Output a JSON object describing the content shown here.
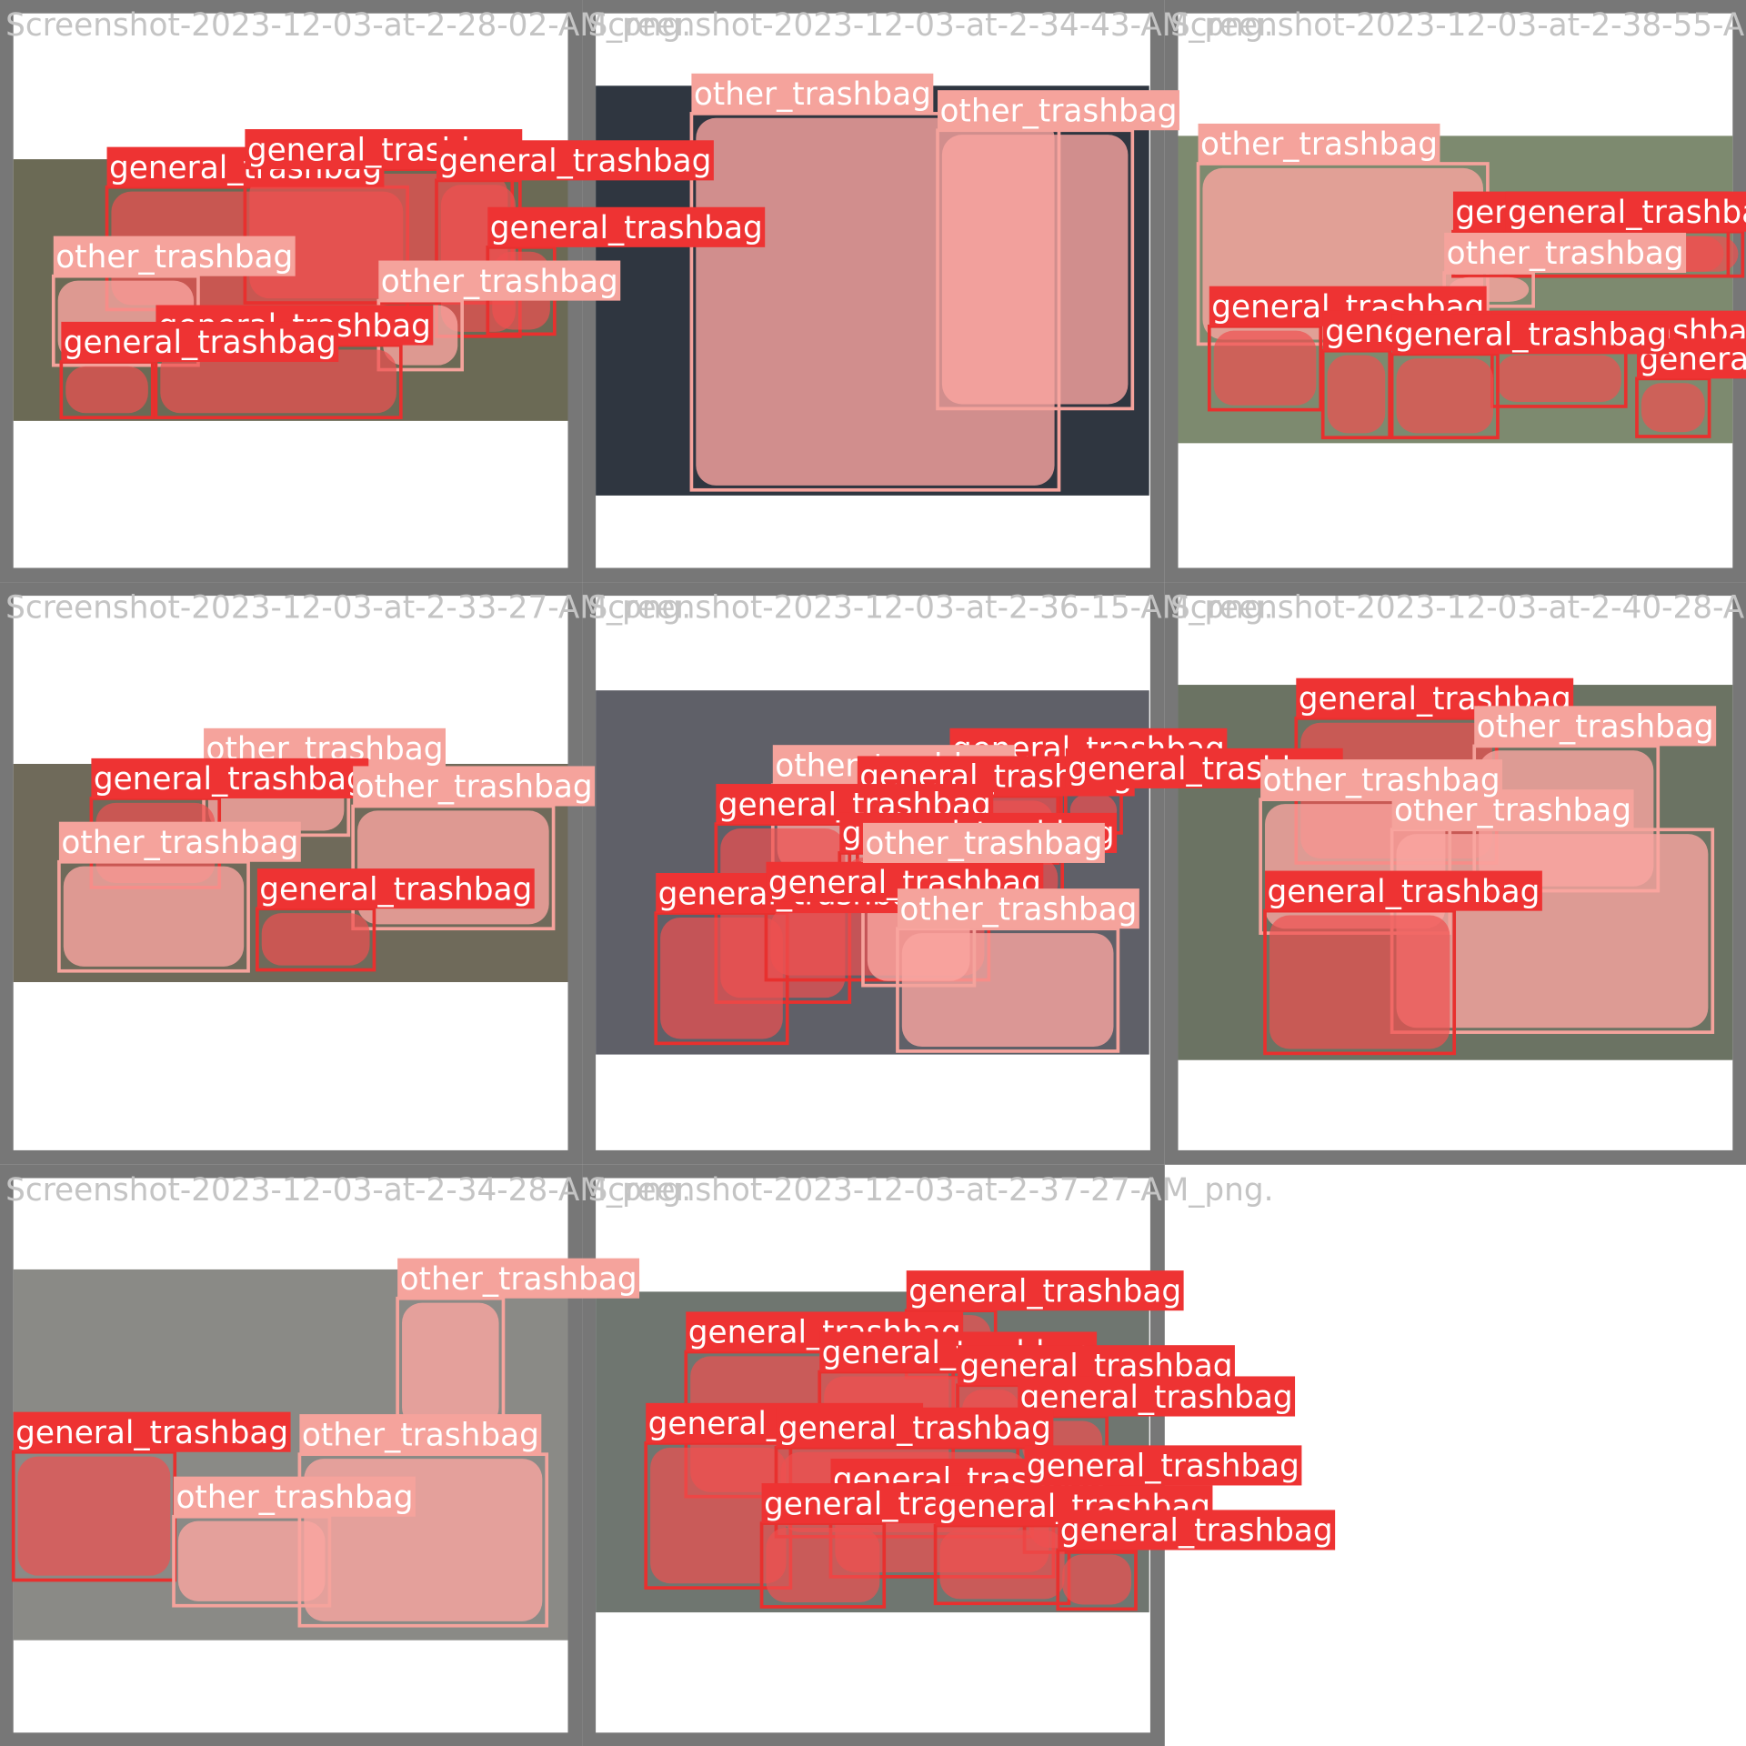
{
  "tiles": [
    {
      "title": "Screenshot-2023-12-03-at-2-28-02-AM_png.",
      "labels": [
        "general_trashbag",
        "general_trashbag",
        "general_trashbag",
        "general_trashbag",
        "other_trashbag",
        "other_trashbag",
        "general_trashbag",
        "general_trashbag"
      ]
    },
    {
      "title": "Screenshot-2023-12-03-at-2-34-43-AM_png.",
      "labels": [
        "other_trashbag",
        "other_trashbag"
      ]
    },
    {
      "title": "Screenshot-2023-12-03-at-2-38-55-AM_png.",
      "labels": [
        "other_trashbag",
        "general_trashbag",
        "general_trashbag",
        "other_trashbag",
        "general_trashbag",
        "general_trashbag",
        "general_trashbag",
        "general_trashbag",
        "general_trashbag"
      ]
    },
    {
      "title": "Screenshot-2023-12-03-at-2-33-27-AM_png.",
      "labels": [
        "other_trashbag",
        "general_trashbag",
        "other_trashbag",
        "other_trashbag",
        "general_trashbag"
      ]
    },
    {
      "title": "Screenshot-2023-12-03-at-2-36-15-AM_png.",
      "labels": [
        "general_trashbag",
        "other_trashbag",
        "general_trashbag",
        "general_trashbag",
        "general_trashbag",
        "general_trashbag",
        "general_trashbag",
        "general_trashbag",
        "other_trashbag",
        "other_trashbag"
      ]
    },
    {
      "title": "Screenshot-2023-12-03-at-2-40-28-AM_png.",
      "labels": [
        "general_trashbag",
        "other_trashbag",
        "other_trashbag",
        "other_trashbag",
        "general_trashbag"
      ]
    },
    {
      "title": "Screenshot-2023-12-03-at-2-34-28-AM_png.",
      "labels": [
        "other_trashbag",
        "general_trashbag",
        "other_trashbag",
        "other_trashbag"
      ]
    },
    {
      "title": "Screenshot-2023-12-03-at-2-37-27-AM_png.",
      "labels": [
        "general_trashbag",
        "general_trashbag",
        "general_trashbag",
        "general_trashbag",
        "general_trashbag",
        "general_trashbag",
        "general_trashbag",
        "general_trashbag",
        "general_trashbag",
        "general_trashbag",
        "general_trashbag",
        "general_trashbag"
      ]
    }
  ]
}
